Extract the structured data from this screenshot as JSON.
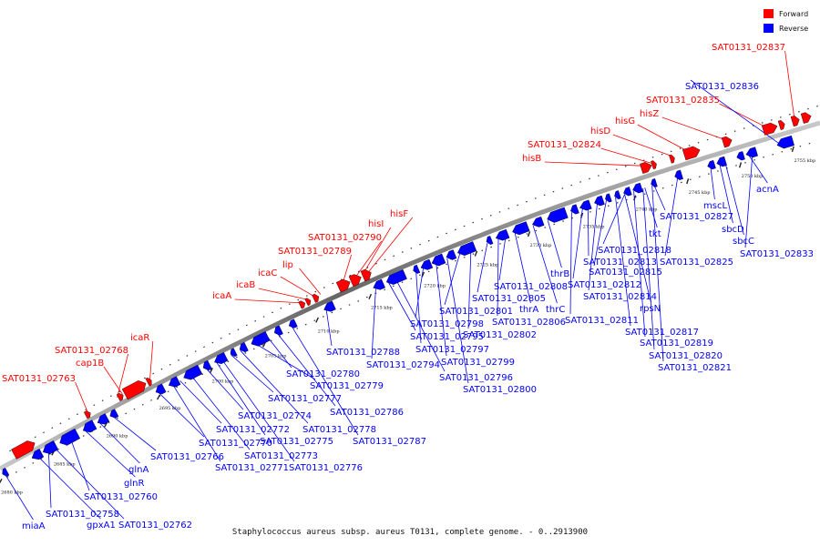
{
  "caption": "Staphylococcus aureus subsp. aureus T0131, complete genome. - 0..2913900",
  "legend": [
    {
      "label": "Forward",
      "color": "#ff0000"
    },
    {
      "label": "Reverse",
      "color": "#0000ff"
    }
  ],
  "colors": {
    "forward": "#ff0000",
    "reverse": "#0000ff",
    "axis": "#777777"
  },
  "scale": {
    "start_kbp": 2679,
    "end_kbp": 2757
  },
  "ticks": [
    "2680 kbp",
    "2685 kbp",
    "2690 kbp",
    "2695 kbp",
    "2700 kbp",
    "2705 kbp",
    "2710 kbp",
    "2715 kbp",
    "2720 kbp",
    "2725 kbp",
    "2730 kbp",
    "2735 kbp",
    "2740 kbp",
    "2745 kbp",
    "2750 kbp",
    "2755 kbp"
  ],
  "forward_genes": [
    "SAT0131_02763",
    "SAT0131_02768",
    "cap1B",
    "icaR",
    "icaA",
    "icaB",
    "icaC",
    "lip",
    "SAT0131_02789",
    "SAT0131_02790",
    "hisI",
    "hisF",
    "hisB",
    "SAT0131_02824",
    "hisD",
    "hisG",
    "hisZ",
    "SAT0131_02835",
    "SAT0131_02837"
  ],
  "reverse_genes": [
    "miaA",
    "gpxA1",
    "SAT0131_02758",
    "SAT0131_02762",
    "SAT0131_02760",
    "glnR",
    "glnA",
    "SAT0131_02766",
    "SAT0131_02770",
    "SAT0131_02771",
    "SAT0131_02772",
    "SAT0131_02773",
    "SAT0131_02774",
    "SAT0131_02775",
    "SAT0131_02776",
    "SAT0131_02777",
    "SAT0131_02778",
    "SAT0131_02779",
    "SAT0131_02780",
    "SAT0131_02786",
    "SAT0131_02787",
    "SAT0131_02788",
    "SAT0131_02794",
    "SAT0131_02795",
    "SAT0131_02796",
    "SAT0131_02797",
    "SAT0131_02798",
    "SAT0131_02799",
    "SAT0131_02800",
    "SAT0131_02801",
    "SAT0131_02802",
    "SAT0131_02805",
    "SAT0131_02806",
    "thrA",
    "thrC",
    "thrB",
    "SAT0131_02808",
    "SAT0131_02811",
    "SAT0131_02812",
    "SAT0131_02813",
    "SAT0131_02814",
    "SAT0131_02815",
    "SAT0131_02817",
    "SAT0131_02818",
    "SAT0131_02819",
    "SAT0131_02820",
    "SAT0131_02821",
    "rpsN",
    "tkt",
    "SAT0131_02825",
    "SAT0131_02827",
    "mscL",
    "sbcD",
    "sbcC",
    "acnA",
    "SAT0131_02833",
    "SAT0131_02836"
  ]
}
